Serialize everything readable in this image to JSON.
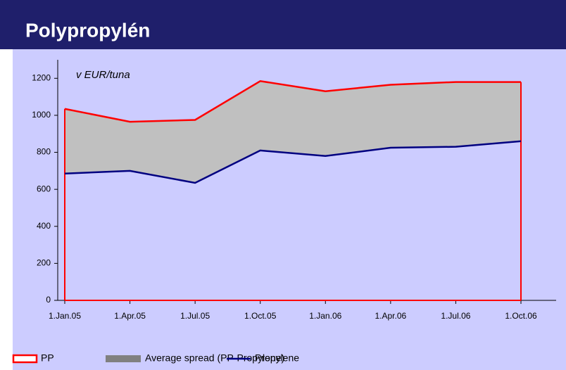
{
  "header": {
    "title": "Polypropylén"
  },
  "chart_data": {
    "type": "area",
    "annotation": "v EUR/tuna",
    "categories": [
      "1.Jan.05",
      "1.Apr.05",
      "1.Jul.05",
      "1.Oct.05",
      "1.Jan.06",
      "1.Apr.06",
      "1.Jul.06",
      "1.Oct.06"
    ],
    "series": [
      {
        "name": "PP",
        "color": "#ff0000",
        "values": [
          1035,
          965,
          975,
          1185,
          1130,
          1165,
          1180,
          1180
        ]
      },
      {
        "name": "Average spread (PP-Propylene)",
        "color": "#c0c0c0"
      },
      {
        "name": "Propylene",
        "color": "#000080",
        "values": [
          685,
          700,
          635,
          810,
          780,
          825,
          830,
          860
        ]
      }
    ],
    "ylim": [
      0,
      1300
    ],
    "yticks": [
      0,
      200,
      400,
      600,
      800,
      1000,
      1200
    ],
    "background": "#ccccff"
  }
}
